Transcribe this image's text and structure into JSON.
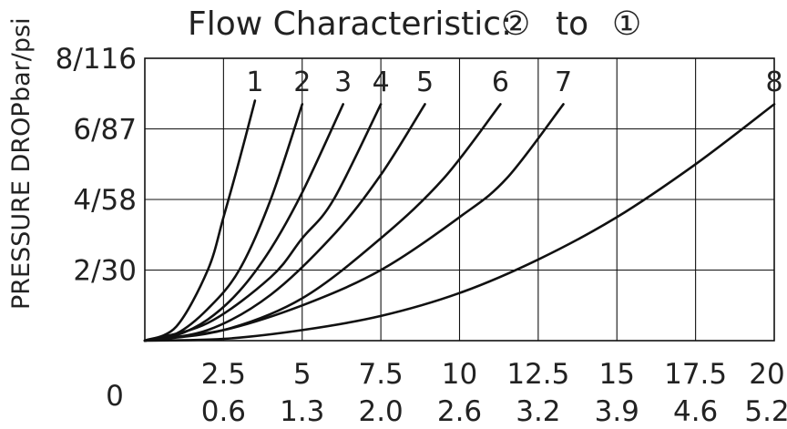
{
  "chart_data": {
    "type": "line",
    "title": "Flow Characteristic:",
    "title_from": "②",
    "title_to_word": "to",
    "title_to": "①",
    "ylabel": "PRESSURE DROP",
    "ylabel_units": "bar/psi",
    "x_zero_label": "0",
    "x_ticks_primary": [
      "2.5",
      "5",
      "7.5",
      "10",
      "12.5",
      "15",
      "17.5",
      "20"
    ],
    "x_ticks_secondary": [
      "0.6",
      "1.3",
      "2.0",
      "2.6",
      "3.2",
      "3.9",
      "4.6",
      "5.2"
    ],
    "y_ticks": [
      "2/30",
      "4/58",
      "6/87",
      "8/116"
    ],
    "xlim": [
      0,
      20
    ],
    "ylim": [
      0,
      8
    ],
    "grid": true,
    "series": [
      {
        "name": "1",
        "x": [
          0,
          1,
          2,
          2.5,
          3,
          3.5
        ],
        "y": [
          0,
          0.4,
          2.0,
          3.5,
          5.1,
          6.8
        ]
      },
      {
        "name": "2",
        "x": [
          0,
          1,
          2,
          3,
          4,
          5
        ],
        "y": [
          0,
          0.2,
          0.9,
          2.0,
          4.0,
          6.7
        ]
      },
      {
        "name": "3",
        "x": [
          0,
          1,
          2,
          3,
          4,
          5,
          6.3
        ],
        "y": [
          0,
          0.15,
          0.6,
          1.4,
          2.6,
          4.2,
          6.7
        ]
      },
      {
        "name": "4",
        "x": [
          0,
          2,
          4,
          5,
          6,
          7.5
        ],
        "y": [
          0,
          0.5,
          1.8,
          2.9,
          4.0,
          6.7
        ]
      },
      {
        "name": "5",
        "x": [
          0,
          2,
          4,
          6,
          7.5,
          8.9
        ],
        "y": [
          0,
          0.3,
          1.3,
          3.0,
          4.7,
          6.7
        ]
      },
      {
        "name": "6",
        "x": [
          0,
          2.5,
          5,
          7.5,
          9.5,
          11.3
        ],
        "y": [
          0,
          0.3,
          1.2,
          2.9,
          4.6,
          6.7
        ]
      },
      {
        "name": "7",
        "x": [
          0,
          2.5,
          5,
          7.5,
          10,
          11.5,
          13.3
        ],
        "y": [
          0,
          0.3,
          1.0,
          2.0,
          3.5,
          4.6,
          6.7
        ]
      },
      {
        "name": "8",
        "x": [
          0,
          2.5,
          5,
          7.5,
          10,
          12.5,
          15,
          17.5,
          20
        ],
        "y": [
          0,
          0.05,
          0.3,
          0.7,
          1.35,
          2.3,
          3.5,
          5.0,
          6.7
        ]
      }
    ],
    "curve_label_x": [
      3.5,
      5.0,
      6.3,
      7.5,
      8.9,
      11.3,
      13.3,
      20.0
    ],
    "colors": {
      "line": "#111111",
      "text": "#222222",
      "background": "#ffffff"
    }
  }
}
